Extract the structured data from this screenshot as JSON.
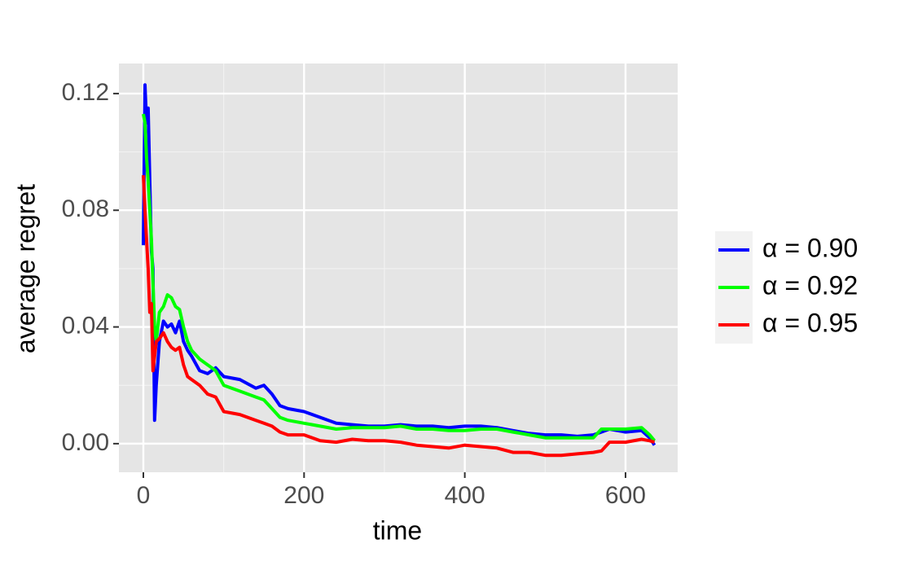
{
  "chart_data": {
    "type": "line",
    "xlabel": "time",
    "ylabel": "average regret",
    "x": [
      0,
      2,
      4,
      6,
      8,
      10,
      12,
      14,
      16,
      20,
      25,
      30,
      35,
      40,
      45,
      50,
      55,
      60,
      70,
      80,
      90,
      100,
      120,
      140,
      150,
      160,
      170,
      180,
      200,
      220,
      240,
      260,
      280,
      300,
      320,
      340,
      360,
      380,
      400,
      420,
      440,
      460,
      480,
      500,
      520,
      540,
      560,
      570,
      580,
      600,
      620,
      630,
      636
    ],
    "series": [
      {
        "name": "α = 0.90",
        "color": "#0000ff",
        "values": [
          0.068,
          0.123,
          0.11,
          0.115,
          0.09,
          0.066,
          0.06,
          0.008,
          0.02,
          0.035,
          0.042,
          0.04,
          0.041,
          0.038,
          0.042,
          0.035,
          0.032,
          0.03,
          0.025,
          0.024,
          0.026,
          0.023,
          0.022,
          0.019,
          0.02,
          0.017,
          0.013,
          0.012,
          0.011,
          0.009,
          0.007,
          0.0065,
          0.006,
          0.006,
          0.0065,
          0.006,
          0.006,
          0.0055,
          0.006,
          0.006,
          0.0055,
          0.0045,
          0.0035,
          0.003,
          0.003,
          0.0025,
          0.003,
          0.004,
          0.005,
          0.004,
          0.0045,
          0.002,
          -0.0005
        ]
      },
      {
        "name": "α = 0.92",
        "color": "#00ff00",
        "values": [
          0.113,
          0.11,
          0.098,
          0.09,
          0.08,
          0.07,
          0.055,
          0.04,
          0.035,
          0.045,
          0.047,
          0.051,
          0.05,
          0.047,
          0.046,
          0.04,
          0.035,
          0.032,
          0.029,
          0.027,
          0.025,
          0.02,
          0.018,
          0.016,
          0.015,
          0.012,
          0.009,
          0.008,
          0.007,
          0.006,
          0.005,
          0.0055,
          0.0055,
          0.0055,
          0.006,
          0.005,
          0.005,
          0.0045,
          0.0045,
          0.005,
          0.005,
          0.004,
          0.003,
          0.002,
          0.002,
          0.002,
          0.002,
          0.005,
          0.005,
          0.005,
          0.0055,
          0.003,
          0.001
        ]
      },
      {
        "name": "α = 0.95",
        "color": "#ff0000",
        "values": [
          0.092,
          0.08,
          0.07,
          0.06,
          0.045,
          0.048,
          0.025,
          0.03,
          0.035,
          0.036,
          0.038,
          0.035,
          0.033,
          0.032,
          0.033,
          0.027,
          0.023,
          0.022,
          0.02,
          0.017,
          0.016,
          0.011,
          0.01,
          0.008,
          0.007,
          0.006,
          0.004,
          0.003,
          0.003,
          0.001,
          0.0005,
          0.0015,
          0.001,
          0.001,
          0.0005,
          -0.0005,
          -0.001,
          -0.0015,
          -0.0005,
          -0.001,
          -0.0015,
          -0.003,
          -0.003,
          -0.004,
          -0.004,
          -0.0035,
          -0.003,
          -0.0025,
          0.0005,
          0.0005,
          0.0015,
          0.001,
          0.0005
        ]
      }
    ],
    "xlim": [
      -30.4,
      664.9
    ],
    "ylim": [
      -0.0098,
      0.1303
    ],
    "xticks": [
      0,
      200,
      400,
      600
    ],
    "yticks": [
      {
        "value": 0,
        "label": "0.00"
      },
      0.04,
      0.08,
      0.12
    ],
    "x_minor_grid": [
      100,
      300,
      500
    ],
    "y_minor_grid": [
      0.02,
      0.06,
      0.1
    ],
    "grid": true,
    "legend": "right"
  }
}
